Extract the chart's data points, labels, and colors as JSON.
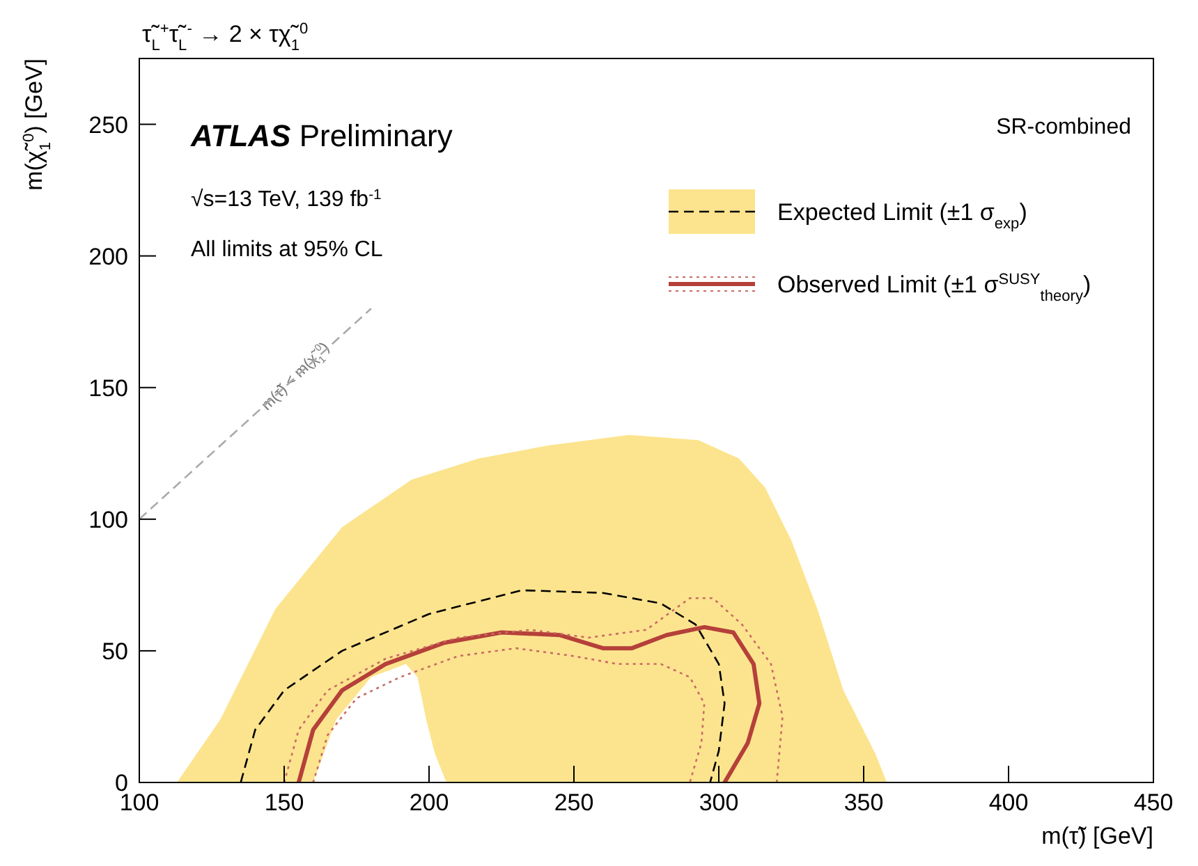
{
  "chart_data": {
    "type": "line",
    "title": "τ̃$_{L}$$^{+}$τ̃$_{L}$$^{-}$ → 2 × τχ̃$_{1}$$^{0}$",
    "xlabel": "m(τ̃) [GeV]",
    "ylabel": "m(χ̃$_{1}$$^{0}$) [GeV]",
    "xlim": [
      100,
      450
    ],
    "xticks": [
      100,
      150,
      200,
      250,
      300,
      350,
      400,
      450
    ],
    "ylim": [
      0,
      275
    ],
    "yticks": [
      0,
      50,
      100,
      150,
      200,
      250
    ],
    "legend": "top right",
    "marker": "none",
    "annotations": [
      "ATLAS Preliminary",
      "√s=13 TeV, 139 fb$^{-1}$",
      "All limits at 95% CL",
      "SR-combined",
      "m(τ̃) < m(χ̃$_{1}$$^{0}$)"
    ],
    "series": [
      {
        "type": "area",
        "color": "#fce48e",
        "x": [
          113,
          128,
          147,
          170,
          194,
          217,
          241,
          269,
          293,
          307,
          316,
          325,
          334,
          343,
          354,
          358,
          null,
          160,
          168,
          180,
          192,
          196,
          199,
          202,
          206
        ],
        "values": [
          0,
          24,
          66,
          97,
          115,
          123,
          128,
          132,
          130,
          123,
          112,
          92,
          66,
          35,
          11,
          0,
          null,
          0,
          24,
          40,
          45,
          40,
          24,
          11,
          0
        ]
      },
      {
        "name": "Expected Limit (±1 σ$_{exp}$)",
        "color": "#000000",
        "line_style": "dashed",
        "x": [
          135,
          140,
          150,
          170,
          200,
          232,
          260,
          280,
          292,
          300,
          302,
          300,
          297
        ],
        "values": [
          0,
          20,
          35,
          50,
          64,
          73,
          72,
          68,
          60,
          45,
          30,
          12,
          0
        ]
      },
      {
        "name": "Observed Limit (±1 σ$^{SUSY}$$_{theory}$)",
        "color": "#b5403a",
        "line_style": "solid",
        "x": [
          155,
          160,
          170,
          185,
          205,
          225,
          245,
          260,
          270,
          282,
          295,
          305,
          312,
          314,
          310,
          302
        ],
        "values": [
          0,
          20,
          35,
          45,
          53,
          57,
          56,
          51,
          51,
          56,
          59,
          57,
          45,
          30,
          15,
          0
        ]
      },
      {
        "color": "#c96a64",
        "line_style": "dotted",
        "x": [
          150,
          155,
          165,
          185,
          210,
          235,
          255,
          275,
          290,
          298,
          308,
          318,
          322,
          320
        ],
        "values": [
          0,
          20,
          35,
          47,
          55,
          58,
          55,
          58,
          70,
          70,
          60,
          45,
          25,
          0
        ]
      },
      {
        "color": "#c96a64",
        "line_style": "dotted",
        "x": [
          160,
          165,
          175,
          190,
          210,
          230,
          250,
          265,
          280,
          290,
          295,
          294,
          290
        ],
        "values": [
          0,
          18,
          32,
          40,
          48,
          51,
          48,
          45,
          45,
          40,
          30,
          15,
          0
        ]
      },
      {
        "color": "#aaaaaa",
        "line_style": "dashed",
        "x": [
          100,
          180
        ],
        "values": [
          100,
          180
        ]
      }
    ]
  }
}
